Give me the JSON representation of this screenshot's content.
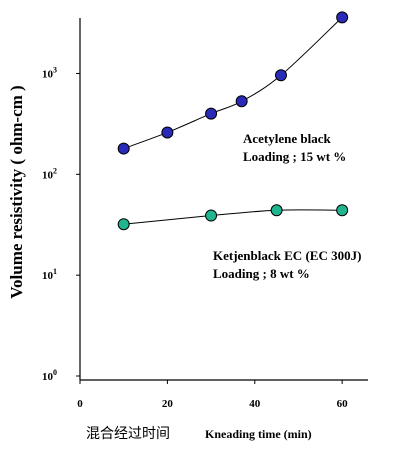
{
  "chart_data": {
    "type": "scatter",
    "yscale": "log",
    "xlim": [
      0,
      65
    ],
    "ylim_log10": [
      0,
      3.55
    ],
    "xticks": [
      0,
      20,
      40,
      60
    ],
    "yticks": [
      {
        "exp": 0,
        "base": "10",
        "sup": "0"
      },
      {
        "exp": 1,
        "base": "10",
        "sup": "1"
      },
      {
        "exp": 2,
        "base": "10",
        "sup": "2"
      },
      {
        "exp": 3,
        "base": "10",
        "sup": "3"
      }
    ],
    "ylabel": "Volume resistivity ( ohm-cm )",
    "xlabel_cn": "混合经过时间",
    "xlabel_en": "Kneading time (min)",
    "grid": false,
    "series": [
      {
        "name": "Acetylene black",
        "annotation": [
          "Acetylene black",
          "Loading ; 15 wt %"
        ],
        "color": "#2a2ab8",
        "x": [
          10,
          20,
          30,
          37,
          46,
          60
        ],
        "y": [
          180,
          260,
          400,
          530,
          960,
          3600
        ]
      },
      {
        "name": "Ketjenblack EC (EC 300J)",
        "annotation": [
          "Ketjenblack EC (EC 300J)",
          "Loading ; 8 wt %"
        ],
        "color": "#1fb58f",
        "x": [
          10,
          30,
          45,
          60
        ],
        "y": [
          32,
          39,
          44,
          44
        ]
      }
    ]
  }
}
